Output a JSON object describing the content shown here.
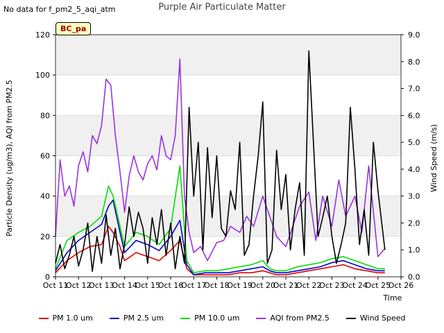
{
  "note": "No data for f_pm2_5_aqi_atm",
  "badge": "BC_pa",
  "chart_data": {
    "type": "line",
    "title": "Purple Air Particulate Matter",
    "xlabel": "Time",
    "ylabel": "Particle Density (ug/m3), AQI from PM2.5",
    "y2label": "Wind Speed (m/s)",
    "xlim": [
      11,
      26
    ],
    "ylim": [
      0,
      120
    ],
    "y2lim": [
      0,
      9
    ],
    "x_ticks": [
      11,
      12,
      13,
      14,
      15,
      16,
      17,
      18,
      19,
      20,
      21,
      22,
      23,
      24,
      25,
      26
    ],
    "x_tick_labels": [
      "Oct 11",
      "Oct 12",
      "Oct 13",
      "Oct 14",
      "Oct 15",
      "Oct 16",
      "Oct 17",
      "Oct 18",
      "Oct 19",
      "Oct 20",
      "Oct 21",
      "Oct 22",
      "Oct 23",
      "Oct 24",
      "Oct 25",
      "Oct 26"
    ],
    "y_ticks": [
      0,
      20,
      40,
      60,
      80,
      100,
      120
    ],
    "y2_ticks": [
      "0.0",
      "1.0",
      "2.0",
      "3.0",
      "4.0",
      "5.0",
      "6.0",
      "7.0",
      "8.0",
      "9.0"
    ],
    "shaded_bands": [
      [
        20,
        40
      ],
      [
        60,
        80
      ],
      [
        100,
        120
      ]
    ],
    "series": [
      {
        "name": "PM 1.0 um",
        "color": "#dd0000",
        "axis": "left",
        "x": [
          11.0,
          11.5,
          12.0,
          12.5,
          13.0,
          13.3,
          13.5,
          13.8,
          14.0,
          14.5,
          15.0,
          15.5,
          16.0,
          16.4,
          16.7,
          17.0,
          17.5,
          18.0,
          18.5,
          19.0,
          19.5,
          20.0,
          20.3,
          20.6,
          21.0,
          21.5,
          22.0,
          22.5,
          23.0,
          23.5,
          24.0,
          24.5,
          25.0,
          25.3
        ],
        "y": [
          2,
          8,
          12,
          15,
          16,
          25,
          22,
          15,
          8,
          12,
          10,
          8,
          13,
          18,
          4,
          1,
          1,
          1,
          1,
          2,
          2,
          3,
          2,
          1,
          1,
          2,
          3,
          4,
          5,
          6,
          4,
          3,
          2,
          2
        ]
      },
      {
        "name": "PM 2.5 um",
        "color": "#0000cc",
        "axis": "left",
        "x": [
          11.0,
          11.5,
          12.0,
          12.5,
          13.0,
          13.3,
          13.5,
          13.8,
          14.0,
          14.5,
          15.0,
          15.5,
          16.0,
          16.4,
          16.7,
          17.0,
          17.5,
          18.0,
          18.5,
          19.0,
          19.5,
          20.0,
          20.3,
          20.6,
          21.0,
          21.5,
          22.0,
          22.5,
          23.0,
          23.5,
          24.0,
          24.5,
          25.0,
          25.3
        ],
        "y": [
          3,
          12,
          18,
          22,
          26,
          35,
          38,
          22,
          12,
          18,
          16,
          13,
          20,
          28,
          6,
          1,
          2,
          2,
          2,
          3,
          4,
          5,
          3,
          2,
          2,
          3,
          4,
          5,
          7,
          8,
          6,
          4,
          3,
          3
        ]
      },
      {
        "name": "PM 10.0 um",
        "color": "#00dd00",
        "axis": "left",
        "x": [
          11.0,
          11.5,
          12.0,
          12.5,
          13.0,
          13.3,
          13.5,
          13.8,
          14.0,
          14.5,
          15.0,
          15.5,
          16.0,
          16.4,
          16.7,
          17.0,
          17.5,
          18.0,
          18.5,
          19.0,
          19.5,
          20.0,
          20.3,
          20.6,
          21.0,
          21.5,
          22.0,
          22.5,
          23.0,
          23.5,
          24.0,
          24.5,
          25.0,
          25.3
        ],
        "y": [
          4,
          18,
          22,
          25,
          30,
          45,
          40,
          25,
          15,
          22,
          20,
          16,
          24,
          55,
          8,
          2,
          3,
          3,
          4,
          5,
          6,
          8,
          4,
          3,
          3,
          5,
          6,
          7,
          9,
          10,
          8,
          6,
          4,
          4
        ]
      },
      {
        "name": "AQI from PM2.5",
        "color": "#9933dd",
        "axis": "left",
        "x": [
          11.0,
          11.2,
          11.4,
          11.6,
          11.8,
          12.0,
          12.2,
          12.4,
          12.6,
          12.8,
          13.0,
          13.2,
          13.4,
          13.6,
          13.8,
          14.0,
          14.2,
          14.4,
          14.6,
          14.8,
          15.0,
          15.2,
          15.4,
          15.6,
          15.8,
          16.0,
          16.2,
          16.4,
          16.6,
          16.8,
          17.0,
          17.3,
          17.6,
          18.0,
          18.3,
          18.6,
          19.0,
          19.3,
          19.6,
          20.0,
          20.3,
          20.6,
          21.0,
          21.3,
          21.6,
          22.0,
          22.3,
          22.6,
          23.0,
          23.3,
          23.6,
          24.0,
          24.3,
          24.6,
          25.0,
          25.3
        ],
        "y": [
          20,
          58,
          40,
          45,
          35,
          55,
          62,
          52,
          70,
          66,
          75,
          98,
          95,
          70,
          52,
          32,
          50,
          60,
          52,
          48,
          56,
          60,
          53,
          70,
          60,
          58,
          70,
          108,
          40,
          22,
          12,
          15,
          8,
          17,
          18,
          25,
          22,
          30,
          25,
          40,
          30,
          20,
          15,
          25,
          35,
          42,
          18,
          40,
          25,
          48,
          30,
          40,
          22,
          55,
          10,
          14
        ]
      },
      {
        "name": "Wind Speed",
        "color": "#000000",
        "axis": "right",
        "x": [
          11.0,
          11.2,
          11.4,
          11.6,
          11.8,
          12.0,
          12.2,
          12.4,
          12.6,
          12.8,
          13.0,
          13.2,
          13.4,
          13.6,
          13.8,
          14.0,
          14.2,
          14.4,
          14.6,
          14.8,
          15.0,
          15.2,
          15.4,
          15.6,
          15.8,
          16.0,
          16.2,
          16.4,
          16.6,
          16.8,
          17.0,
          17.2,
          17.4,
          17.6,
          17.8,
          18.0,
          18.2,
          18.4,
          18.6,
          18.8,
          19.0,
          19.2,
          19.4,
          19.6,
          19.8,
          20.0,
          20.2,
          20.4,
          20.6,
          20.8,
          21.0,
          21.2,
          21.4,
          21.6,
          21.8,
          22.0,
          22.2,
          22.4,
          22.6,
          22.8,
          23.0,
          23.2,
          23.4,
          23.6,
          23.8,
          24.0,
          24.2,
          24.4,
          24.6,
          24.8,
          25.0,
          25.3
        ],
        "y": [
          0.5,
          1.2,
          0.3,
          0.8,
          1.5,
          0.4,
          1.0,
          2.0,
          0.2,
          1.5,
          0.5,
          2.3,
          0.8,
          1.8,
          0.3,
          1.2,
          2.6,
          1.5,
          2.4,
          1.8,
          0.5,
          2.2,
          1.2,
          2.5,
          0.8,
          2.0,
          0.3,
          1.5,
          0.5,
          6.3,
          3.0,
          5.0,
          1.0,
          4.8,
          2.2,
          4.5,
          1.8,
          1.5,
          3.2,
          2.5,
          5.0,
          0.8,
          1.2,
          3.0,
          4.5,
          6.5,
          0.5,
          1.0,
          4.7,
          2.5,
          3.8,
          1.0,
          2.5,
          3.5,
          0.8,
          8.4,
          5.0,
          1.5,
          2.2,
          3.0,
          1.5,
          0.5,
          1.2,
          2.0,
          6.3,
          4.0,
          1.2,
          2.5,
          0.8,
          5.0,
          3.2,
          1.0
        ]
      }
    ]
  }
}
